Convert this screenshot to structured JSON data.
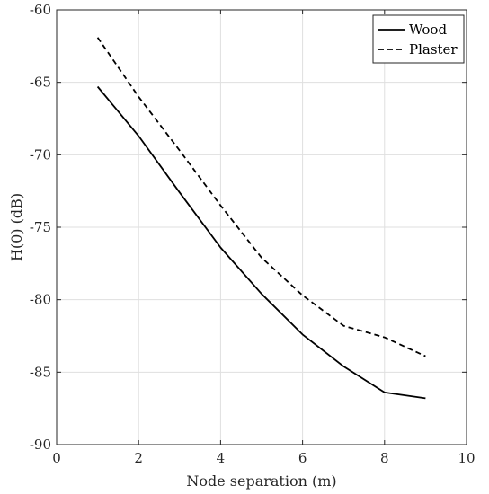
{
  "chart_data": {
    "type": "line",
    "title": "",
    "xlabel": "Node separation (m)",
    "ylabel": "H(0) (dB)",
    "xlim": [
      0,
      10
    ],
    "ylim": [
      -90,
      -60
    ],
    "xticks": [
      "0",
      "2",
      "4",
      "6",
      "8",
      "10"
    ],
    "yticks": [
      "-60",
      "-65",
      "-70",
      "-75",
      "-80",
      "-85",
      "-90"
    ],
    "xtick_values": [
      0,
      2,
      4,
      6,
      8,
      10
    ],
    "ytick_values": [
      -60,
      -65,
      -70,
      -75,
      -80,
      -85,
      -90
    ],
    "grid": true,
    "legend_position": "top-right",
    "x": [
      1,
      2,
      3,
      4,
      5,
      6,
      7,
      8,
      9
    ],
    "series": [
      {
        "name": "Wood",
        "style": "solid",
        "color": "#000000",
        "values": [
          -65.3,
          -68.7,
          -72.6,
          -76.4,
          -79.6,
          -82.4,
          -84.6,
          -86.4,
          -86.8
        ]
      },
      {
        "name": "Plaster",
        "style": "dashed",
        "color": "#000000",
        "values": [
          -61.9,
          -66.0,
          -69.7,
          -73.5,
          -77.1,
          -79.7,
          -81.8,
          -82.6,
          -83.9
        ]
      }
    ]
  }
}
